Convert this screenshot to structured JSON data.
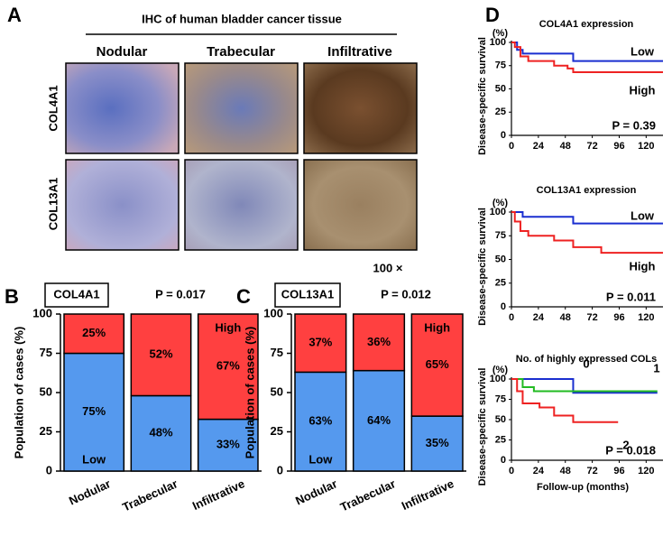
{
  "panel_labels": [
    "A",
    "B",
    "C",
    "D"
  ],
  "ihc": {
    "title": "IHC of human bladder cancer tissue",
    "columns": [
      "Nodular",
      "Trabecular",
      "Infiltrative"
    ],
    "rows": [
      "COL4A1",
      "COL13A1"
    ],
    "magnification": "100 ×"
  },
  "chart_data": [
    {
      "type": "stacked_bar",
      "title": "COL4A1",
      "annotation": "P = 0.017",
      "ylabel": "Population of cases (%)",
      "categories": [
        "Nodular",
        "Trabecular",
        "Infiltrative"
      ],
      "series": [
        {
          "name": "Low",
          "color": "#5599ee",
          "values": [
            75,
            48,
            33
          ],
          "value_labels": [
            "75%",
            "48%",
            "33%"
          ]
        },
        {
          "name": "High",
          "color": "#ff4040",
          "values": [
            25,
            52,
            67
          ],
          "value_labels": [
            "25%",
            "52%",
            "67%"
          ]
        }
      ],
      "ylim": [
        0,
        100
      ],
      "yticks": [
        0,
        25,
        50,
        75,
        100
      ]
    },
    {
      "type": "stacked_bar",
      "title": "COL13A1",
      "annotation": "P = 0.012",
      "ylabel": "Population of cases (%)",
      "categories": [
        "Nodular",
        "Trabecular",
        "Infiltrative"
      ],
      "series": [
        {
          "name": "Low",
          "color": "#5599ee",
          "values": [
            63,
            64,
            35
          ],
          "value_labels": [
            "63%",
            "64%",
            "35%"
          ]
        },
        {
          "name": "High",
          "color": "#ff4040",
          "values": [
            37,
            36,
            65
          ],
          "value_labels": [
            "37%",
            "36%",
            "65%"
          ]
        }
      ],
      "ylim": [
        0,
        100
      ],
      "yticks": [
        0,
        25,
        50,
        75,
        100
      ]
    },
    {
      "type": "line",
      "title": "COL4A1 expression",
      "annotation": "P = 0.39",
      "ylabel": "Disease-specific survival",
      "yunit": "(%)",
      "series": [
        {
          "name": "Low",
          "color": "#1a2fd0",
          "x": [
            0,
            5,
            5,
            10,
            10,
            55,
            55,
            135
          ],
          "values": [
            100,
            100,
            92,
            92,
            88,
            88,
            80,
            80
          ]
        },
        {
          "name": "High",
          "color": "#ee2222",
          "x": [
            0,
            3,
            3,
            8,
            8,
            15,
            15,
            38,
            38,
            50,
            50,
            55,
            55,
            135
          ],
          "values": [
            100,
            100,
            95,
            95,
            85,
            85,
            80,
            80,
            75,
            75,
            72,
            72,
            68,
            68
          ]
        }
      ],
      "xlim": [
        0,
        135
      ],
      "xticks": [
        0,
        24,
        48,
        72,
        96,
        120
      ],
      "ylim": [
        0,
        100
      ],
      "yticks": [
        0,
        25,
        50,
        75,
        100
      ]
    },
    {
      "type": "line",
      "title": "COL13A1 expression",
      "annotation": "P = 0.011",
      "ylabel": "Disease-specific survival",
      "yunit": "(%)",
      "series": [
        {
          "name": "Low",
          "color": "#1a2fd0",
          "x": [
            0,
            10,
            10,
            55,
            55,
            135
          ],
          "values": [
            100,
            100,
            95,
            95,
            88,
            88
          ]
        },
        {
          "name": "High",
          "color": "#ee2222",
          "x": [
            0,
            3,
            3,
            8,
            8,
            15,
            15,
            38,
            38,
            55,
            55,
            80,
            80,
            135
          ],
          "values": [
            100,
            100,
            90,
            90,
            80,
            80,
            75,
            75,
            70,
            70,
            63,
            63,
            57,
            57
          ]
        }
      ],
      "xlim": [
        0,
        135
      ],
      "xticks": [
        0,
        24,
        48,
        72,
        96,
        120
      ],
      "ylim": [
        0,
        100
      ],
      "yticks": [
        0,
        25,
        50,
        75,
        100
      ]
    },
    {
      "type": "line",
      "title": "No. of highly expressed COLs",
      "annotation": "P = 0.018",
      "ylabel": "Disease-specific survival",
      "yunit": "(%)",
      "xlabel": "Follow-up (months)",
      "series": [
        {
          "name": "0",
          "color": "#1a2fd0",
          "x": [
            0,
            55,
            55,
            130
          ],
          "values": [
            100,
            100,
            83,
            83
          ]
        },
        {
          "name": "1",
          "color": "#22bb22",
          "x": [
            0,
            10,
            10,
            20,
            20,
            130
          ],
          "values": [
            100,
            100,
            90,
            90,
            85,
            85
          ]
        },
        {
          "name": "2",
          "color": "#ee2222",
          "x": [
            0,
            5,
            5,
            10,
            10,
            25,
            25,
            38,
            38,
            55,
            55,
            95
          ],
          "values": [
            100,
            100,
            85,
            85,
            70,
            70,
            65,
            65,
            55,
            55,
            47,
            47
          ]
        }
      ],
      "xlim": [
        0,
        135
      ],
      "xticks": [
        0,
        24,
        48,
        72,
        96,
        120
      ],
      "ylim": [
        0,
        100
      ],
      "yticks": [
        0,
        25,
        50,
        75,
        100
      ]
    }
  ]
}
